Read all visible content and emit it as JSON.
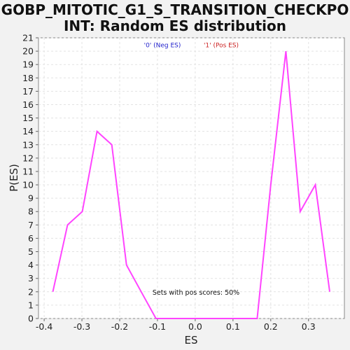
{
  "chart_data": {
    "type": "line",
    "title_line1": "GOBP_MITOTIC_G1_S_TRANSITION_CHECKPO",
    "title_line2": "INT: Random ES distribution",
    "xlabel": "ES",
    "ylabel": "P(ES)",
    "xlim": [
      -0.415,
      0.395
    ],
    "ylim": [
      0,
      21
    ],
    "x_ticks": [
      "-0.4",
      "-0.3",
      "-0.2",
      "-0.1",
      "0.0",
      "0.1",
      "0.2",
      "0.3"
    ],
    "x_tick_values": [
      -0.4,
      -0.3,
      -0.2,
      -0.1,
      0.0,
      0.1,
      0.2,
      0.3
    ],
    "y_ticks": [
      "0",
      "1",
      "2",
      "3",
      "4",
      "5",
      "6",
      "7",
      "8",
      "9",
      "10",
      "11",
      "12",
      "13",
      "14",
      "15",
      "16",
      "17",
      "18",
      "19",
      "20",
      "21"
    ],
    "y_tick_values": [
      0,
      1,
      2,
      3,
      4,
      5,
      6,
      7,
      8,
      9,
      10,
      11,
      12,
      13,
      14,
      15,
      16,
      17,
      18,
      19,
      20,
      21
    ],
    "grid": true,
    "legend": {
      "placement": "top-center",
      "items": [
        {
          "label": "'0' (Neg ES)",
          "color": "#2222cc"
        },
        {
          "label": "'1' (Pos ES)",
          "color": "#cc2222"
        }
      ]
    },
    "annotation": "Sets with pos scores: 50%",
    "series": [
      {
        "color": "#ff44ff",
        "x": [
          -0.377,
          -0.338,
          -0.299,
          -0.26,
          -0.221,
          -0.182,
          -0.143,
          -0.104,
          -0.065,
          -0.026,
          0.013,
          0.052,
          0.091,
          0.13,
          0.164,
          0.2,
          0.24,
          0.278,
          0.318,
          0.356
        ],
        "y": [
          2,
          7,
          8,
          14,
          13,
          4,
          2,
          0,
          0,
          0,
          0,
          0,
          0,
          0,
          0,
          10,
          20,
          8,
          10,
          2
        ]
      }
    ]
  }
}
